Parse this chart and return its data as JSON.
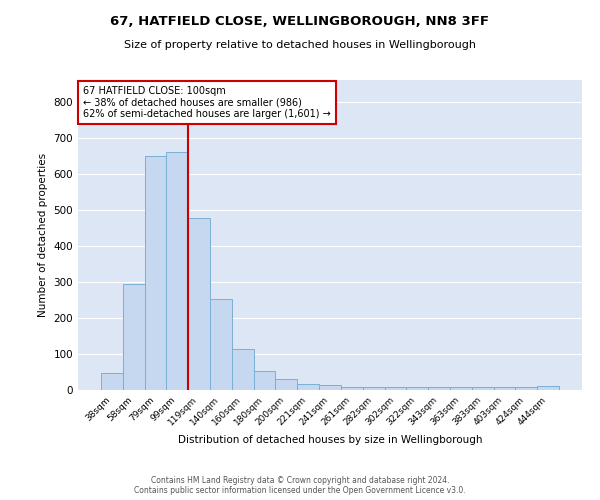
{
  "title": "67, HATFIELD CLOSE, WELLINGBOROUGH, NN8 3FF",
  "subtitle": "Size of property relative to detached houses in Wellingborough",
  "xlabel": "Distribution of detached houses by size in Wellingborough",
  "ylabel": "Number of detached properties",
  "categories": [
    "38sqm",
    "58sqm",
    "79sqm",
    "99sqm",
    "119sqm",
    "140sqm",
    "160sqm",
    "180sqm",
    "200sqm",
    "221sqm",
    "241sqm",
    "261sqm",
    "282sqm",
    "302sqm",
    "322sqm",
    "343sqm",
    "363sqm",
    "383sqm",
    "403sqm",
    "424sqm",
    "444sqm"
  ],
  "values": [
    47,
    293,
    650,
    660,
    478,
    252,
    113,
    52,
    30,
    17,
    15,
    8,
    8,
    8,
    8,
    8,
    8,
    8,
    8,
    8,
    10
  ],
  "bar_color": "#c5d8f0",
  "bar_edgecolor": "#7bafd4",
  "ylim": [
    0,
    860
  ],
  "yticks": [
    0,
    100,
    200,
    300,
    400,
    500,
    600,
    700,
    800
  ],
  "vline_x": 3.5,
  "vline_color": "#cc0000",
  "annotation_line1": "67 HATFIELD CLOSE: 100sqm",
  "annotation_line2": "← 38% of detached houses are smaller (986)",
  "annotation_line3": "62% of semi-detached houses are larger (1,601) →",
  "annotation_box_color": "#cc0000",
  "annotation_box_facecolor": "white",
  "footer_line1": "Contains HM Land Registry data © Crown copyright and database right 2024.",
  "footer_line2": "Contains public sector information licensed under the Open Government Licence v3.0.",
  "background_color": "#dde6f4",
  "grid_color": "white"
}
